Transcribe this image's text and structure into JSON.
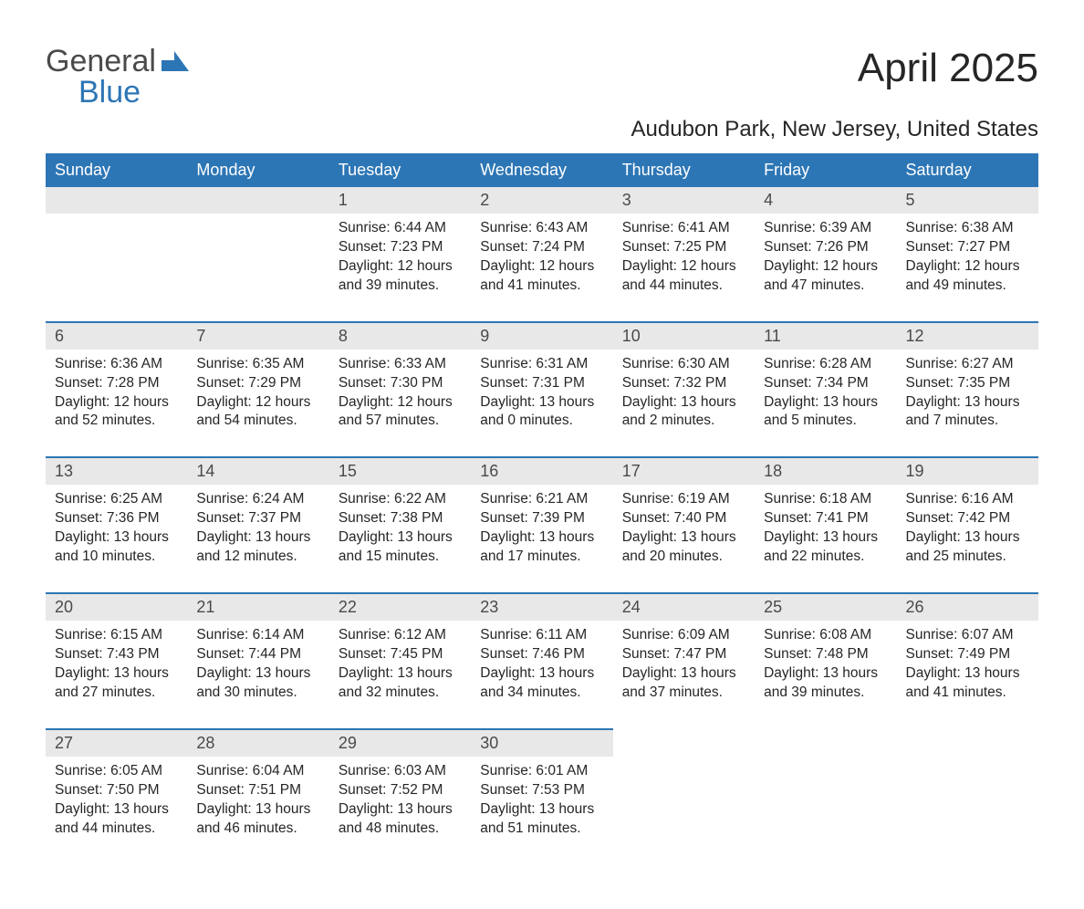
{
  "logo": {
    "general": "General",
    "blue": "Blue"
  },
  "title": "April 2025",
  "location": "Audubon Park, New Jersey, United States",
  "colors": {
    "header_bg": "#2d76b5",
    "header_text": "#ffffff",
    "daynum_bg": "#e8e8e8",
    "text": "#262626",
    "border": "#2d76b5"
  },
  "columns": [
    "Sunday",
    "Monday",
    "Tuesday",
    "Wednesday",
    "Thursday",
    "Friday",
    "Saturday"
  ],
  "weeks": [
    [
      null,
      null,
      {
        "n": "1",
        "sunrise": "6:44 AM",
        "sunset": "7:23 PM",
        "daylight": "12 hours and 39 minutes."
      },
      {
        "n": "2",
        "sunrise": "6:43 AM",
        "sunset": "7:24 PM",
        "daylight": "12 hours and 41 minutes."
      },
      {
        "n": "3",
        "sunrise": "6:41 AM",
        "sunset": "7:25 PM",
        "daylight": "12 hours and 44 minutes."
      },
      {
        "n": "4",
        "sunrise": "6:39 AM",
        "sunset": "7:26 PM",
        "daylight": "12 hours and 47 minutes."
      },
      {
        "n": "5",
        "sunrise": "6:38 AM",
        "sunset": "7:27 PM",
        "daylight": "12 hours and 49 minutes."
      }
    ],
    [
      {
        "n": "6",
        "sunrise": "6:36 AM",
        "sunset": "7:28 PM",
        "daylight": "12 hours and 52 minutes."
      },
      {
        "n": "7",
        "sunrise": "6:35 AM",
        "sunset": "7:29 PM",
        "daylight": "12 hours and 54 minutes."
      },
      {
        "n": "8",
        "sunrise": "6:33 AM",
        "sunset": "7:30 PM",
        "daylight": "12 hours and 57 minutes."
      },
      {
        "n": "9",
        "sunrise": "6:31 AM",
        "sunset": "7:31 PM",
        "daylight": "13 hours and 0 minutes."
      },
      {
        "n": "10",
        "sunrise": "6:30 AM",
        "sunset": "7:32 PM",
        "daylight": "13 hours and 2 minutes."
      },
      {
        "n": "11",
        "sunrise": "6:28 AM",
        "sunset": "7:34 PM",
        "daylight": "13 hours and 5 minutes."
      },
      {
        "n": "12",
        "sunrise": "6:27 AM",
        "sunset": "7:35 PM",
        "daylight": "13 hours and 7 minutes."
      }
    ],
    [
      {
        "n": "13",
        "sunrise": "6:25 AM",
        "sunset": "7:36 PM",
        "daylight": "13 hours and 10 minutes."
      },
      {
        "n": "14",
        "sunrise": "6:24 AM",
        "sunset": "7:37 PM",
        "daylight": "13 hours and 12 minutes."
      },
      {
        "n": "15",
        "sunrise": "6:22 AM",
        "sunset": "7:38 PM",
        "daylight": "13 hours and 15 minutes."
      },
      {
        "n": "16",
        "sunrise": "6:21 AM",
        "sunset": "7:39 PM",
        "daylight": "13 hours and 17 minutes."
      },
      {
        "n": "17",
        "sunrise": "6:19 AM",
        "sunset": "7:40 PM",
        "daylight": "13 hours and 20 minutes."
      },
      {
        "n": "18",
        "sunrise": "6:18 AM",
        "sunset": "7:41 PM",
        "daylight": "13 hours and 22 minutes."
      },
      {
        "n": "19",
        "sunrise": "6:16 AM",
        "sunset": "7:42 PM",
        "daylight": "13 hours and 25 minutes."
      }
    ],
    [
      {
        "n": "20",
        "sunrise": "6:15 AM",
        "sunset": "7:43 PM",
        "daylight": "13 hours and 27 minutes."
      },
      {
        "n": "21",
        "sunrise": "6:14 AM",
        "sunset": "7:44 PM",
        "daylight": "13 hours and 30 minutes."
      },
      {
        "n": "22",
        "sunrise": "6:12 AM",
        "sunset": "7:45 PM",
        "daylight": "13 hours and 32 minutes."
      },
      {
        "n": "23",
        "sunrise": "6:11 AM",
        "sunset": "7:46 PM",
        "daylight": "13 hours and 34 minutes."
      },
      {
        "n": "24",
        "sunrise": "6:09 AM",
        "sunset": "7:47 PM",
        "daylight": "13 hours and 37 minutes."
      },
      {
        "n": "25",
        "sunrise": "6:08 AM",
        "sunset": "7:48 PM",
        "daylight": "13 hours and 39 minutes."
      },
      {
        "n": "26",
        "sunrise": "6:07 AM",
        "sunset": "7:49 PM",
        "daylight": "13 hours and 41 minutes."
      }
    ],
    [
      {
        "n": "27",
        "sunrise": "6:05 AM",
        "sunset": "7:50 PM",
        "daylight": "13 hours and 44 minutes."
      },
      {
        "n": "28",
        "sunrise": "6:04 AM",
        "sunset": "7:51 PM",
        "daylight": "13 hours and 46 minutes."
      },
      {
        "n": "29",
        "sunrise": "6:03 AM",
        "sunset": "7:52 PM",
        "daylight": "13 hours and 48 minutes."
      },
      {
        "n": "30",
        "sunrise": "6:01 AM",
        "sunset": "7:53 PM",
        "daylight": "13 hours and 51 minutes."
      },
      null,
      null,
      null
    ]
  ],
  "labels": {
    "sunrise": "Sunrise: ",
    "sunset": "Sunset: ",
    "daylight": "Daylight: "
  }
}
